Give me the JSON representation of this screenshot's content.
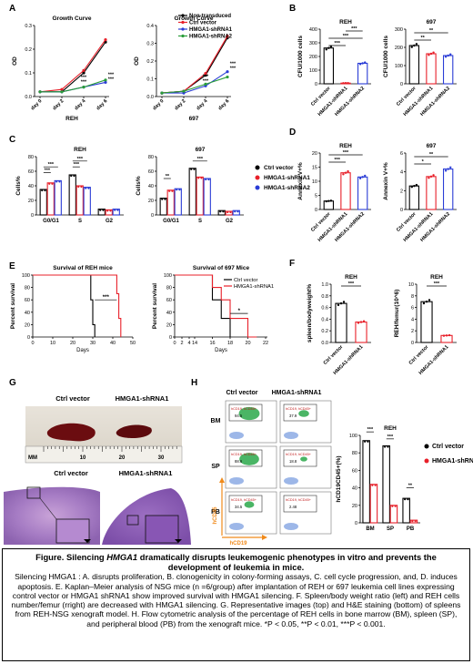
{
  "panel_letters": [
    "A",
    "B",
    "C",
    "D",
    "E",
    "F",
    "G",
    "H"
  ],
  "chart_data": [
    {
      "id": "A-REH",
      "type": "line",
      "title": "Growth Curve",
      "xlabel": "REH",
      "ylabel": "OD",
      "categories": [
        "day 0",
        "day 2",
        "day 4",
        "day 6"
      ],
      "yticks": [
        "0.0",
        "0.1",
        "0.2",
        "0.3"
      ],
      "ylim": [
        0,
        0.3
      ],
      "series": [
        {
          "name": "Non-transduced",
          "color": "#000000",
          "values": [
            0.02,
            0.02,
            0.1,
            0.23
          ]
        },
        {
          "name": "Ctrl vector",
          "color": "#e8202a",
          "values": [
            0.02,
            0.03,
            0.11,
            0.24
          ]
        },
        {
          "name": "HMGA1-shRNA1",
          "color": "#2a3cd6",
          "values": [
            0.02,
            0.02,
            0.04,
            0.06
          ]
        },
        {
          "name": "HMGA1-shRNA2",
          "color": "#2a9d3a",
          "values": [
            0.02,
            0.02,
            0.04,
            0.07
          ]
        }
      ],
      "stars": [
        "***",
        "***",
        "***",
        "***"
      ]
    },
    {
      "id": "A-697",
      "type": "line",
      "title": "Growth Curve",
      "xlabel": "697",
      "ylabel": "OD",
      "categories": [
        "day 0",
        "day 2",
        "day 4",
        "day 6"
      ],
      "yticks": [
        "0.0",
        "0.1",
        "0.2",
        "0.3",
        "0.4"
      ],
      "ylim": [
        0,
        0.4
      ],
      "series": [
        {
          "name": "Non-transduced",
          "color": "#000000",
          "values": [
            0.02,
            0.03,
            0.12,
            0.33
          ]
        },
        {
          "name": "Ctrl vector",
          "color": "#e8202a",
          "values": [
            0.02,
            0.03,
            0.13,
            0.34
          ]
        },
        {
          "name": "HMGA1-shRNA1",
          "color": "#2a3cd6",
          "values": [
            0.02,
            0.02,
            0.06,
            0.14
          ]
        },
        {
          "name": "HMGA1-shRNA2",
          "color": "#2a9d3a",
          "values": [
            0.02,
            0.03,
            0.07,
            0.11
          ]
        }
      ],
      "stars": [
        "***",
        "***",
        "***",
        "***"
      ]
    },
    {
      "id": "B-REH",
      "type": "bar",
      "title": "REH",
      "ylabel": "CFU/1000 cells",
      "categories": [
        "Ctrl vector",
        "HMGA1-shRNA1",
        "HMGA1-shRNA2"
      ],
      "colors": [
        "#000000",
        "#e8202a",
        "#2a3cd6"
      ],
      "values": [
        262,
        5,
        150
      ],
      "ylim": [
        0,
        400
      ],
      "yticks": [
        "0",
        "100",
        "200",
        "300",
        "400"
      ],
      "stars": [
        "***",
        "***",
        "***"
      ]
    },
    {
      "id": "B-697",
      "type": "bar",
      "title": "697",
      "ylabel": "CFU/1000 cells",
      "categories": [
        "Ctrl vector",
        "HMGA1-shRNA1",
        "HMGA1-shRNA2"
      ],
      "colors": [
        "#000000",
        "#e8202a",
        "#2a3cd6"
      ],
      "values": [
        210,
        165,
        155
      ],
      "ylim": [
        0,
        300
      ],
      "yticks": [
        "0",
        "100",
        "200",
        "300"
      ],
      "stars": [
        "**",
        "**"
      ]
    },
    {
      "id": "C-REH",
      "type": "bar",
      "title": "REH",
      "ylabel": "Cells%",
      "categories": [
        "G0/G1",
        "S",
        "G2"
      ],
      "series": [
        {
          "name": "Ctrl vector",
          "color": "#000000",
          "values": [
            35,
            55,
            8
          ]
        },
        {
          "name": "HMGA1-shRNA1",
          "color": "#e8202a",
          "values": [
            44,
            40,
            7
          ]
        },
        {
          "name": "HMGA1-shRNA2",
          "color": "#2a3cd6",
          "values": [
            47,
            38,
            8
          ]
        }
      ],
      "ylim": [
        0,
        80
      ],
      "yticks": [
        "0",
        "20",
        "40",
        "60",
        "80"
      ],
      "stars": [
        "***",
        "***",
        "***",
        "***"
      ]
    },
    {
      "id": "C-697",
      "type": "bar",
      "title": "697",
      "ylabel": "Cells%",
      "categories": [
        "G0/G1",
        "S",
        "G2"
      ],
      "series": [
        {
          "name": "Ctrl vector",
          "color": "#000000",
          "values": [
            23,
            64,
            6
          ]
        },
        {
          "name": "HMGA1-shRNA1",
          "color": "#e8202a",
          "values": [
            34,
            52,
            5
          ]
        },
        {
          "name": "HMGA1-shRNA2",
          "color": "#2a3cd6",
          "values": [
            36,
            50,
            6
          ]
        }
      ],
      "ylim": [
        0,
        80
      ],
      "yticks": [
        "0",
        "20",
        "40",
        "60",
        "80"
      ],
      "stars": [
        "**",
        "***"
      ]
    },
    {
      "id": "D-REH",
      "type": "bar",
      "title": "REH",
      "ylabel": "Annexin V+%",
      "categories": [
        "Ctrl vector",
        "HMGA1-shRNA1",
        "HMGA1-shRNA2"
      ],
      "colors": [
        "#000000",
        "#e8202a",
        "#2a3cd6"
      ],
      "values": [
        3,
        13,
        11.5
      ],
      "ylim": [
        0,
        20
      ],
      "yticks": [
        "0",
        "5",
        "10",
        "15",
        "20"
      ],
      "stars": [
        "***",
        "***"
      ]
    },
    {
      "id": "D-697",
      "type": "bar",
      "title": "697",
      "ylabel": "Annexin V+%",
      "categories": [
        "Ctrl vector",
        "HMGA1-shRNA1",
        "HMGA1-shRNA2"
      ],
      "colors": [
        "#000000",
        "#e8202a",
        "#2a3cd6"
      ],
      "values": [
        2.5,
        3.5,
        4.3
      ],
      "ylim": [
        0,
        6
      ],
      "yticks": [
        "0",
        "2",
        "4",
        "6"
      ],
      "stars": [
        "*",
        "**"
      ]
    },
    {
      "id": "E-REH",
      "type": "line",
      "title": "Survival of REH mice",
      "xlabel": "Days",
      "ylabel": "Percent survival",
      "xticks": [
        "0",
        "10",
        "20",
        "30",
        "40",
        "50"
      ],
      "xlim": [
        0,
        50
      ],
      "yticks": [
        "0",
        "20",
        "40",
        "60",
        "80",
        "100"
      ],
      "ylim": [
        0,
        100
      ],
      "series": [
        {
          "name": "Ctrl vector",
          "color": "#000000",
          "x": [
            0,
            29,
            29,
            30,
            30,
            31,
            31
          ],
          "y": [
            100,
            100,
            60,
            60,
            20,
            20,
            0
          ]
        },
        {
          "name": "HMGA1-shRNA1",
          "color": "#e8202a",
          "x": [
            0,
            42,
            42,
            43,
            43,
            44,
            44
          ],
          "y": [
            100,
            100,
            70,
            70,
            30,
            30,
            0
          ]
        }
      ],
      "stars": [
        "***"
      ]
    },
    {
      "id": "E-697",
      "type": "line",
      "title": "Survival of 697 Mice",
      "xlabel": "Days",
      "ylabel": "Percent survival",
      "xticks": [
        "0",
        "2",
        "4",
        "14",
        "16",
        "18",
        "20",
        "22"
      ],
      "xlim": [
        0,
        22
      ],
      "yticks": [
        "0",
        "20",
        "40",
        "60",
        "80",
        "100"
      ],
      "ylim": [
        0,
        100
      ],
      "series": [
        {
          "name": "Ctrl vector",
          "color": "#000000",
          "x": [
            0,
            16,
            16,
            17,
            17,
            18,
            18
          ],
          "y": [
            100,
            100,
            60,
            60,
            30,
            30,
            0
          ]
        },
        {
          "name": "HMGA1-shRNA1",
          "color": "#e8202a",
          "x": [
            0,
            16,
            16,
            17,
            17,
            18,
            18,
            20,
            20,
            21
          ],
          "y": [
            100,
            100,
            80,
            80,
            60,
            60,
            30,
            30,
            0,
            0
          ]
        }
      ],
      "legend": [
        "Ctrl vector",
        "HMGA1-shRNA1"
      ],
      "stars": [
        "*"
      ]
    },
    {
      "id": "F-ratio",
      "type": "bar",
      "title": "REH",
      "ylabel": "spleen/bodyweight%",
      "categories": [
        "Ctrl vector",
        "HMGA1-shRNA1"
      ],
      "colors": [
        "#000000",
        "#e8202a"
      ],
      "values": [
        0.67,
        0.35
      ],
      "ylim": [
        0,
        1.0
      ],
      "yticks": [
        "0.0",
        "0.2",
        "0.4",
        "0.6",
        "0.8",
        "1.0"
      ],
      "stars": [
        "***"
      ]
    },
    {
      "id": "F-count",
      "type": "bar",
      "title": "REH",
      "ylabel": "REH/femur(10^6)",
      "categories": [
        "Ctrl vector",
        "HMGA1-shRNA1"
      ],
      "colors": [
        "#000000",
        "#e8202a"
      ],
      "values": [
        7.0,
        1.2
      ],
      "ylim": [
        0,
        10
      ],
      "yticks": [
        "0",
        "2",
        "4",
        "6",
        "8",
        "10"
      ],
      "stars": [
        "***"
      ]
    },
    {
      "id": "H-bars",
      "type": "bar",
      "title": "REH",
      "ylabel": "hCD19CD45+(%)",
      "categories": [
        "BM",
        "SP",
        "PB"
      ],
      "series": [
        {
          "name": "Ctrl vector",
          "color": "#000000",
          "values": [
            94,
            88,
            28
          ]
        },
        {
          "name": "HMGA1-shRNA1",
          "color": "#e8202a",
          "values": [
            44,
            20,
            3
          ]
        }
      ],
      "ylim": [
        0,
        100
      ],
      "yticks": [
        "0",
        "20",
        "40",
        "60",
        "80",
        "100"
      ],
      "stars": [
        "***",
        "***",
        "**"
      ]
    }
  ],
  "legends": {
    "A": [
      "Non-transduced",
      "Ctrl vector",
      "HMGA1-shRNA1",
      "HMGA1-shRNA2"
    ],
    "C": [
      "Ctrl vector",
      "HMGA1-shRNA1",
      "HMGA1-shRNA2"
    ],
    "H": [
      "Ctrl vector",
      "HMGA1-shRNA1"
    ]
  },
  "panel_g": {
    "ctrl_label": "Ctrl vector",
    "kd_label": "HMGA1-shRNA1",
    "ruler_unit": "MM",
    "ruler_ticks": [
      "10",
      "20",
      "30"
    ],
    "ctrl_label_bottom": "Ctrl vector",
    "kd_label_bottom": "HMGA1-shRNA1"
  },
  "panel_h": {
    "ctrl_label": "Ctrl vector",
    "kd_label": "HMGA1-shRNA1",
    "rows": [
      "BM",
      "SP",
      "PB"
    ],
    "gate_label": "hCD19, hCD45+",
    "values_ctrl": [
      "94.5",
      "88.6",
      "34.5"
    ],
    "values_kd": [
      "37.9",
      "18.8",
      "2.48"
    ],
    "x_axis": "hCD19",
    "y_axis": "hCD45"
  },
  "caption": {
    "lead_prefix": "Figure.  Silencing ",
    "lead_gene": "HMGA1",
    "lead_suffix": " dramatically disrupts leukemogenic phenotypes in vitro and prevents the development of leukemia in mice.",
    "body": "Silencing HMGA1 : A. disrupts proliferation, B. clonogenicity in colony-forming assays, C. cell cycle progression, and, D. induces apoptosis.  E. Kaplan–Meier analysis of NSG mice (n =6/group) after implantation of  REH or 697 leukemia cell lines expressing control vector or HMGA1 shRNA1 show improved survival with HMGA1 silencing.  F. Spleen/body weight ratio (left) and REH cells number/femur (rright) are decreased with HMGA1 silencing.  G. Representative images (top) and H&E staining (bottom) of spleens from REH-NSG xenograft model.  H. Flow cytometric analysis of the percentage of REH cells in bone marrow (BM), spleen (SP), and peripheral blood (PB) from the xenograft mice. *P < 0.05, **P < 0.01, ***P < 0.001."
  }
}
